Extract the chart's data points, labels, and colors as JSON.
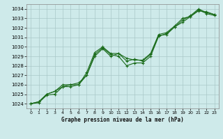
{
  "title": "Graphe pression niveau de la mer (hPa)",
  "background_color": "#ceeaea",
  "grid_color": "#aac8c8",
  "line_color": "#1a6b1a",
  "xlim": [
    -0.5,
    23.5
  ],
  "ylim": [
    1023.5,
    1034.5
  ],
  "yticks": [
    1024,
    1025,
    1026,
    1027,
    1028,
    1029,
    1030,
    1031,
    1032,
    1033,
    1034
  ],
  "xticks": [
    0,
    1,
    2,
    3,
    4,
    5,
    6,
    7,
    8,
    9,
    10,
    11,
    12,
    13,
    14,
    15,
    16,
    17,
    18,
    19,
    20,
    21,
    22,
    23
  ],
  "series": [
    [
      1024.0,
      1024.2,
      1025.0,
      1025.3,
      1026.0,
      1026.0,
      1026.0,
      1027.3,
      1029.4,
      1030.0,
      1029.3,
      1029.3,
      1028.5,
      1028.7,
      1028.5,
      1029.2,
      1031.2,
      1031.3,
      1032.1,
      1032.8,
      1033.3,
      1034.0,
      1033.6,
      1033.4
    ],
    [
      1024.0,
      1024.2,
      1025.0,
      1025.3,
      1025.8,
      1026.0,
      1026.2,
      1027.0,
      1029.2,
      1029.9,
      1029.2,
      1029.0,
      1028.0,
      1028.3,
      1028.3,
      1029.0,
      1031.1,
      1031.4,
      1032.1,
      1032.6,
      1033.2,
      1033.9,
      1033.5,
      1033.3
    ],
    [
      1024.0,
      1024.1,
      1024.9,
      1025.0,
      1025.8,
      1025.8,
      1026.0,
      1027.0,
      1029.0,
      1029.8,
      1029.0,
      1029.3,
      1028.8,
      1028.6,
      1028.6,
      1029.3,
      1031.3,
      1031.5,
      1032.2,
      1033.0,
      1033.2,
      1033.8,
      1033.7,
      1033.4
    ]
  ]
}
